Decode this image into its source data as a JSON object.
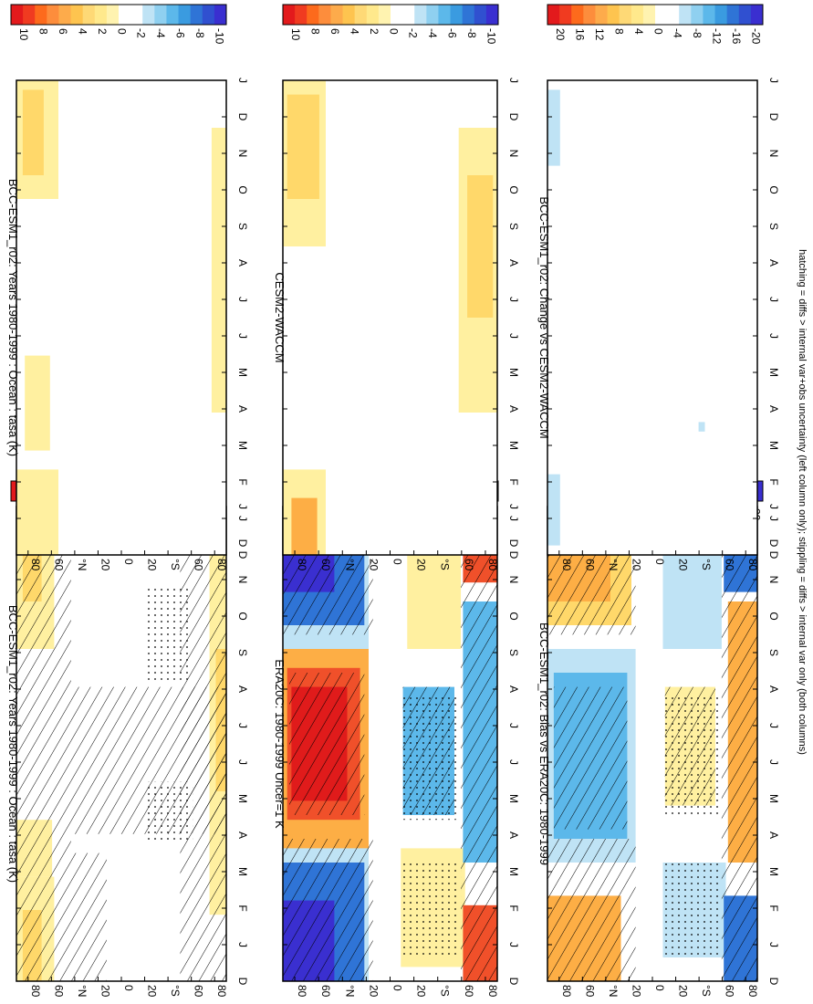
{
  "footnote": "hatching = diffs > internal var+obs uncertainty (left column only); stippling = diffs > internal var only (both columns)",
  "colors": {
    "scale": [
      "#e31a1c",
      "#f03b20",
      "#fd6a1c",
      "#fd8d3c",
      "#fdab4b",
      "#fec44f",
      "#fed976",
      "#ffe98c",
      "#fff3b0",
      "#ffffff",
      "#ffffff",
      "#bfe3f5",
      "#8fd0f0",
      "#5cb8ea",
      "#3a9be0",
      "#2f74d6",
      "#3050d0",
      "#3a2fd0"
    ],
    "warm_light": "#fff0a0",
    "warm_mid": "#ffd86a",
    "warm_strong": "#fdae45",
    "hot": "#f0502a",
    "red": "#e01b1b",
    "cool_light": "#bfe3f5",
    "cool_mid": "#5cb8ea",
    "cool_strong": "#2f74d6",
    "deep_blue": "#3a2fd0"
  },
  "chart_data": [
    {
      "id": "p1",
      "type": "heatmap",
      "title": "BCC-ESM1_r02: Years 1980-1999 : Ocean : tasa (K)",
      "colorbar_labels": [
        "10",
        "8",
        "6",
        "4",
        "2",
        "0",
        "-2",
        "-4",
        "-6",
        "-8",
        "-10"
      ],
      "colorbar_range": [
        -10,
        10
      ],
      "x_ticks": [
        "D",
        "J",
        "F",
        "M",
        "A",
        "M",
        "J",
        "J",
        "A",
        "S",
        "O",
        "N",
        "D",
        "J"
      ],
      "y_ticks": [
        "80",
        "60",
        "°N",
        "20",
        "0",
        "20",
        "°S",
        "60",
        "80"
      ],
      "y_range": [
        90,
        -90
      ],
      "overlays": [
        "hatching",
        "stippling"
      ]
    },
    {
      "id": "p2",
      "type": "heatmap",
      "title": "BCC-ESM1_r02: Years 1980-1999 : Ocean : tasa (K)",
      "colorbar_labels": [
        "10",
        "8",
        "6",
        "4",
        "2",
        "0",
        "-2",
        "-4",
        "-6",
        "-8",
        "-10"
      ],
      "colorbar_range": [
        -10,
        10
      ],
      "x_ticks": [
        "D",
        "J",
        "F",
        "M",
        "A",
        "M",
        "J",
        "J",
        "A",
        "S",
        "O",
        "N",
        "D",
        "J"
      ],
      "y_ticks": [
        "80",
        "60",
        "°N",
        "20",
        "0",
        "20",
        "°S",
        "60",
        "80"
      ],
      "y_range": [
        90,
        -90
      ],
      "overlays": []
    },
    {
      "id": "p3",
      "type": "heatmap",
      "title": "ERA20C: 1980-1999 Uncer=1 K",
      "colorbar_labels": [
        "10",
        "8",
        "6",
        "4",
        "2",
        "0",
        "-2",
        "-4",
        "-6",
        "-8",
        "-10"
      ],
      "colorbar_range": [
        -10,
        10
      ],
      "x_ticks": [
        "D",
        "J",
        "F",
        "M",
        "A",
        "M",
        "J",
        "J",
        "A",
        "S",
        "O",
        "N",
        "D",
        "J"
      ],
      "y_ticks": [
        "80",
        "60",
        "°N",
        "20",
        "0",
        "20",
        "°S",
        "60",
        "80"
      ],
      "y_range": [
        90,
        -90
      ],
      "overlays": [
        "hatching",
        "stippling"
      ]
    },
    {
      "id": "p4",
      "type": "heatmap",
      "title": "CESM2-WACCM",
      "colorbar_labels": [
        "10",
        "8",
        "6",
        "4",
        "2",
        "0",
        "-2",
        "-4",
        "-6",
        "-8",
        "-10"
      ],
      "colorbar_range": [
        -10,
        10
      ],
      "x_ticks": [
        "D",
        "J",
        "F",
        "M",
        "A",
        "M",
        "J",
        "J",
        "A",
        "S",
        "O",
        "N",
        "D",
        "J"
      ],
      "y_ticks": [
        "80",
        "60",
        "°N",
        "20",
        "0",
        "20",
        "°S",
        "60",
        "80"
      ],
      "y_range": [
        90,
        -90
      ],
      "overlays": []
    },
    {
      "id": "p5",
      "type": "heatmap",
      "title": "BCC-ESM1_r02: Bias vs ERA20C: 1980-1999",
      "colorbar_labels": [
        "20",
        "16",
        "12",
        "8",
        "4",
        "0",
        "-4",
        "-8",
        "-12",
        "-16",
        "-20"
      ],
      "colorbar_range": [
        -20,
        20
      ],
      "x_ticks": [
        "D",
        "J",
        "F",
        "M",
        "A",
        "M",
        "J",
        "J",
        "A",
        "S",
        "O",
        "N",
        "D",
        "J"
      ],
      "y_ticks": [
        "80",
        "60",
        "°N",
        "20",
        "0",
        "20",
        "°S",
        "60",
        "80"
      ],
      "y_range": [
        90,
        -90
      ],
      "overlays": [
        "hatching",
        "stippling"
      ]
    },
    {
      "id": "p6",
      "type": "heatmap",
      "title": "BCC-ESM1_r02: Change vs CESM2-WACCM",
      "colorbar_labels": [
        "20",
        "16",
        "12",
        "8",
        "4",
        "0",
        "-4",
        "-8",
        "-12",
        "-16",
        "-20"
      ],
      "colorbar_range": [
        -20,
        20
      ],
      "x_ticks": [
        "D",
        "J",
        "F",
        "M",
        "A",
        "M",
        "J",
        "J",
        "A",
        "S",
        "O",
        "N",
        "D",
        "J"
      ],
      "y_ticks": [
        "80",
        "60",
        "°N",
        "20",
        "0",
        "20",
        "°S",
        "60",
        "80"
      ],
      "y_range": [
        90,
        -90
      ],
      "overlays": []
    }
  ]
}
